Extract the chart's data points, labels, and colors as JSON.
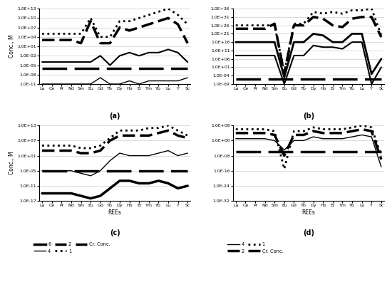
{
  "x_labels": [
    "La",
    "Ce",
    "Pr",
    "Nd",
    "Sm",
    "Eu",
    "Gd",
    "Tb",
    "Dy",
    "Ho",
    "Er",
    "Tm",
    "Yb",
    "Lu",
    "Y",
    "Sc"
  ],
  "panel_a": {
    "ylabel": "Conc., M",
    "ylim_log": [
      -11,
      13
    ],
    "yticks": [
      -11,
      -8,
      -5,
      -2,
      1,
      4,
      7,
      10,
      13
    ],
    "series": [
      {
        "key": "line_thin_bot",
        "vals": [
          -11,
          -11,
          -11,
          -11,
          -11,
          -11,
          -9,
          -11,
          -11,
          -10,
          -11,
          -10,
          -10,
          -10,
          -10,
          -9
        ],
        "lw": 1.0,
        "ls": "-",
        "dashes": null
      },
      {
        "key": "line_thin_mid",
        "vals": [
          -4,
          -4,
          -4,
          -4,
          -4,
          -4,
          -2,
          -5,
          -2,
          -1,
          -2,
          -1,
          -1,
          0,
          -1,
          -4
        ],
        "lw": 1.5,
        "ls": "-",
        "dashes": null
      },
      {
        "key": "cr_conc",
        "vals": [
          -6,
          -6,
          -6,
          -6,
          -6,
          -6,
          -6,
          -6,
          -6,
          -6,
          -6,
          -6,
          -6,
          -6,
          -6,
          -6
        ],
        "lw": 2.5,
        "ls": "--",
        "dashes": [
          10,
          3
        ]
      },
      {
        "key": "line_dash",
        "vals": [
          3,
          3,
          3,
          3,
          2,
          9,
          2,
          2,
          7,
          6,
          7,
          8,
          9,
          10,
          8,
          2
        ],
        "lw": 2.5,
        "ls": "--",
        "dashes": [
          5,
          2
        ]
      },
      {
        "key": "line_dot",
        "vals": [
          5,
          5,
          5,
          5,
          5,
          10,
          4,
          4,
          9,
          9,
          10,
          11,
          12,
          13,
          11,
          8
        ],
        "lw": 2.0,
        "ls": ":",
        "dashes": null
      }
    ]
  },
  "panel_b": {
    "ylabel": "",
    "ylim_log": [
      -9,
      36
    ],
    "yticks": [
      -9,
      -4,
      1,
      6,
      11,
      16,
      21,
      26,
      31,
      36
    ],
    "series": [
      {
        "key": "cr_conc",
        "vals": [
          -6,
          -6,
          -6,
          -6,
          -6,
          -6,
          -6,
          -6,
          -6,
          -6,
          -6,
          -6,
          -6,
          -6,
          -6,
          -6
        ],
        "lw": 2.5,
        "ls": "--",
        "dashes": [
          10,
          3
        ]
      },
      {
        "key": "line_s1",
        "vals": [
          8,
          8,
          8,
          8,
          8,
          -9,
          8,
          8,
          14,
          13,
          13,
          12,
          16,
          16,
          -9,
          1
        ],
        "lw": 1.5,
        "ls": "-",
        "dashes": null
      },
      {
        "key": "line_s2",
        "vals": [
          16,
          16,
          16,
          16,
          16,
          -5,
          16,
          16,
          21,
          20,
          16,
          16,
          21,
          21,
          -3,
          6
        ],
        "lw": 2.0,
        "ls": "-",
        "dashes": null
      },
      {
        "key": "line_dash",
        "vals": [
          24,
          24,
          24,
          24,
          27,
          -3,
          26,
          26,
          31,
          30,
          26,
          25,
          30,
          31,
          31,
          19
        ],
        "lw": 2.5,
        "ls": "--",
        "dashes": [
          5,
          2
        ]
      },
      {
        "key": "line_dot",
        "vals": [
          26,
          26,
          26,
          26,
          26,
          -2,
          27,
          27,
          34,
          33,
          34,
          33,
          35,
          35,
          36,
          20
        ],
        "lw": 2.0,
        "ls": ":",
        "dashes": null
      }
    ]
  },
  "panel_c": {
    "ylabel": "Conc., M",
    "xlabel": "REEs",
    "ylim_log": [
      -17,
      13
    ],
    "yticks": [
      -17,
      -11,
      -5,
      1,
      7,
      13
    ],
    "series": [
      {
        "key": "line6",
        "vals": [
          -14,
          -14,
          -14,
          -14,
          -15,
          -16,
          -15,
          -12,
          -9,
          -9,
          -10,
          -10,
          -9,
          -10,
          -12,
          -11
        ],
        "lw": 2.5,
        "ls": "-",
        "dashes": null
      },
      {
        "key": "line4",
        "vals": [
          -5,
          -5,
          -5,
          -5,
          -6,
          -7,
          -5,
          -1,
          2,
          1,
          1,
          1,
          2,
          3,
          1,
          2
        ],
        "lw": 1.0,
        "ls": "-",
        "dashes": null
      },
      {
        "key": "cr_conc",
        "vals": [
          -5,
          -5,
          -5,
          -5,
          -5,
          -5,
          -5,
          -5,
          -5,
          -5,
          -5,
          -5,
          -5,
          -5,
          -5,
          -5
        ],
        "lw": 2.5,
        "ls": "--",
        "dashes": [
          10,
          3
        ]
      },
      {
        "key": "line2",
        "vals": [
          3,
          3,
          3,
          3,
          2,
          2,
          3,
          7,
          9,
          9,
          9,
          9,
          10,
          11,
          9,
          8
        ],
        "lw": 2.5,
        "ls": "--",
        "dashes": [
          5,
          2
        ]
      },
      {
        "key": "line1",
        "vals": [
          5,
          5,
          5,
          5,
          4,
          4,
          5,
          8,
          11,
          11,
          11,
          12,
          12,
          13,
          11,
          9
        ],
        "lw": 2.0,
        "ls": ":",
        "dashes": null
      }
    ],
    "legend": [
      {
        "label": "6",
        "lw": 2.5,
        "ls": "-",
        "dashes": null
      },
      {
        "label": "4",
        "lw": 1.0,
        "ls": "-",
        "dashes": null
      },
      {
        "label": "2",
        "lw": 2.5,
        "ls": "--",
        "dashes": [
          5,
          2
        ]
      },
      {
        "label": "1",
        "lw": 2.0,
        "ls": ":",
        "dashes": null
      },
      {
        "label": "Cr. Conc.",
        "lw": 2.5,
        "ls": "--",
        "dashes": [
          10,
          3
        ]
      }
    ]
  },
  "panel_d": {
    "ylabel": "",
    "xlabel": "REEs",
    "ylim_log": [
      -32,
      8
    ],
    "yticks": [
      -32,
      -24,
      -16,
      -8,
      0,
      8
    ],
    "series": [
      {
        "key": "cr_conc",
        "vals": [
          -6,
          -6,
          -6,
          -6,
          -6,
          -6,
          -6,
          -6,
          -6,
          -6,
          -6,
          -6,
          -6,
          -6,
          -6,
          -6
        ],
        "lw": 2.5,
        "ls": "--",
        "dashes": [
          10,
          3
        ]
      },
      {
        "key": "line4",
        "vals": [
          1,
          1,
          1,
          1,
          0,
          -5,
          0,
          0,
          2,
          1,
          1,
          1,
          2,
          3,
          2,
          -14
        ],
        "lw": 1.0,
        "ls": "-",
        "dashes": null
      },
      {
        "key": "line2",
        "vals": [
          4,
          4,
          4,
          4,
          3,
          -8,
          3,
          3,
          5,
          4,
          4,
          4,
          5,
          6,
          5,
          -10
        ],
        "lw": 2.5,
        "ls": "--",
        "dashes": [
          5,
          2
        ]
      },
      {
        "key": "line1",
        "vals": [
          6,
          6,
          6,
          6,
          5,
          -15,
          5,
          5,
          7,
          6,
          6,
          6,
          7,
          8,
          7,
          -8
        ],
        "lw": 2.0,
        "ls": ":",
        "dashes": null
      }
    ],
    "legend": [
      {
        "label": "4",
        "lw": 1.0,
        "ls": "-",
        "dashes": null
      },
      {
        "label": "2",
        "lw": 2.5,
        "ls": "--",
        "dashes": [
          5,
          2
        ]
      },
      {
        "label": "1",
        "lw": 2.0,
        "ls": ":",
        "dashes": null
      },
      {
        "label": "Cr. Conc.",
        "lw": 2.5,
        "ls": "--",
        "dashes": [
          10,
          3
        ]
      }
    ]
  },
  "panel_labels": [
    "(a)",
    "(b)",
    "(c)",
    "(d)"
  ]
}
